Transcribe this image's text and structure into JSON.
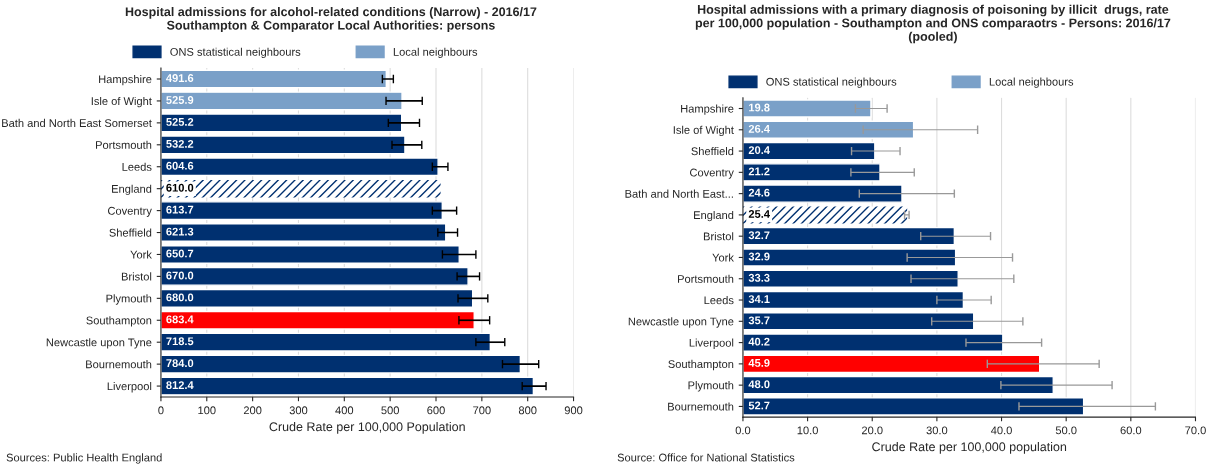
{
  "chart_data": [
    {
      "type": "bar",
      "orientation": "horizontal",
      "title": "Hospital admissions for alcohol-related conditions (Narrow) - 2016/17\nSouthampton & Comparator Local Authorities: persons",
      "xlabel": "Crude Rate per 100,000 Population",
      "categories": [
        "Hampshire",
        "Isle of Wight",
        "Bath and North East Somerset",
        "Portsmouth",
        "Leeds",
        "England",
        "Coventry",
        "Sheffield",
        "York",
        "Bristol",
        "Plymouth",
        "Southampton",
        "Newcastle upon Tyne",
        "Bournemouth",
        "Liverpool"
      ],
      "series": [
        {
          "name": "ONS statistical neighbours",
          "color": "#003070",
          "values": [
            null,
            null,
            525.2,
            532.2,
            604.6,
            null,
            613.7,
            621.3,
            650.7,
            670.0,
            680.0,
            null,
            718.5,
            784.0,
            812.4
          ],
          "value_labels": [
            null,
            null,
            "525.2",
            "532.2",
            "604.6",
            null,
            "613.7",
            "621.3",
            "650.7",
            "670.0",
            "680.0",
            null,
            "718.5",
            "784.0",
            "812.4"
          ],
          "errors": [
            null,
            null,
            [
              496,
              564
            ],
            [
              504,
              569
            ],
            [
              592,
              626
            ],
            null,
            [
              592,
              645
            ],
            [
              604,
              647
            ],
            [
              614,
              687
            ],
            [
              646,
              695
            ],
            [
              648,
              713
            ],
            null,
            [
              687,
              750
            ],
            [
              745,
              824
            ],
            [
              788,
              840
            ]
          ]
        },
        {
          "name": "Local neighbours",
          "color": "#7aa0c8",
          "values": [
            491.6,
            525.9,
            null,
            null,
            null,
            null,
            null,
            null,
            null,
            null,
            null,
            null,
            null,
            null,
            null
          ],
          "value_labels": [
            "491.6",
            "525.9",
            null,
            null,
            null,
            null,
            null,
            null,
            null,
            null,
            null,
            null,
            null,
            null,
            null
          ],
          "errors": [
            [
              483,
              507
            ],
            [
              491,
              570
            ],
            null,
            null,
            null,
            null,
            null,
            null,
            null,
            null,
            null,
            null,
            null,
            null,
            null
          ]
        },
        {
          "color": "#ffffff",
          "values": [
            null,
            null,
            null,
            null,
            null,
            610.0,
            null,
            null,
            null,
            null,
            null,
            null,
            null,
            null,
            null
          ],
          "value_labels": [
            null,
            null,
            null,
            null,
            null,
            "610.0",
            null,
            null,
            null,
            null,
            null,
            null,
            null,
            null,
            null
          ]
        },
        {
          "color": "#ff0000",
          "values": [
            null,
            null,
            null,
            null,
            null,
            null,
            null,
            null,
            null,
            null,
            null,
            683.4,
            null,
            null,
            null
          ],
          "value_labels": [
            null,
            null,
            null,
            null,
            null,
            null,
            null,
            null,
            null,
            null,
            null,
            "683.4",
            null,
            null,
            null
          ],
          "errors": [
            null,
            null,
            null,
            null,
            null,
            null,
            null,
            null,
            null,
            null,
            null,
            [
              650,
              717
            ],
            null,
            null,
            null
          ]
        }
      ],
      "xlim": [
        0,
        900
      ],
      "xticks": [
        0,
        100,
        200,
        300,
        400,
        500,
        600,
        700,
        800,
        900
      ],
      "grid": "x",
      "legend": "top",
      "annotations": [
        "Sources: Public Health England"
      ]
    },
    {
      "type": "bar",
      "orientation": "horizontal",
      "title": "Hospital admissions with a primary diagnosis of poisoning by illicit  drugs, rate\nper 100,000 population - Southampton and ONS comparaotrs - Persons: 2016/17\n(pooled)",
      "xlabel": "Crude Rate per 100,000 population",
      "categories": [
        "Hampshire",
        "Isle of Wight",
        "Sheffield",
        "Coventry",
        "Bath and North East...",
        "England",
        "Bristol",
        "York",
        "Portsmouth",
        "Leeds",
        "Newcastle upon Tyne",
        "Liverpool",
        "Southampton",
        "Plymouth",
        "Bournemouth"
      ],
      "series": [
        {
          "name": "ONS statistical neighbours",
          "color": "#003070",
          "values": [
            null,
            null,
            20.4,
            21.2,
            24.6,
            null,
            32.7,
            32.9,
            33.3,
            34.1,
            35.7,
            40.2,
            null,
            48.0,
            52.7
          ],
          "value_labels": [
            null,
            null,
            "20.4",
            "21.2",
            "24.6",
            null,
            "32.7",
            "32.9",
            "33.3",
            "34.1",
            "35.7",
            "40.2",
            null,
            "48.0",
            "52.7"
          ],
          "errors": [
            null,
            null,
            [
              16.8,
              24.3
            ],
            [
              16.7,
              26.5
            ],
            [
              18.0,
              32.7
            ],
            null,
            [
              27.5,
              38.3
            ],
            [
              25.4,
              41.7
            ],
            [
              26.0,
              41.9
            ],
            [
              30.0,
              38.4
            ],
            [
              29.2,
              43.3
            ],
            [
              34.5,
              46.2
            ],
            null,
            [
              39.9,
              57.1
            ],
            [
              42.7,
              63.8
            ]
          ]
        },
        {
          "name": "Local neighbours",
          "color": "#7aa0c8",
          "values": [
            19.8,
            26.4,
            null,
            null,
            null,
            null,
            null,
            null,
            null,
            null,
            null,
            null,
            null,
            null,
            null
          ],
          "value_labels": [
            "19.8",
            "26.4",
            null,
            null,
            null,
            null,
            null,
            null,
            null,
            null,
            null,
            null,
            null,
            null,
            null
          ],
          "errors": [
            [
              17.4,
              22.3
            ],
            [
              18.6,
              36.3
            ],
            null,
            null,
            null,
            null,
            null,
            null,
            null,
            null,
            null,
            null,
            null,
            null,
            null
          ]
        },
        {
          "color": "#ffffff",
          "values": [
            null,
            null,
            null,
            null,
            null,
            25.4,
            null,
            null,
            null,
            null,
            null,
            null,
            null,
            null,
            null
          ],
          "value_labels": [
            null,
            null,
            null,
            null,
            null,
            "25.4",
            null,
            null,
            null,
            null,
            null,
            null,
            null,
            null,
            null
          ],
          "errors": [
            null,
            null,
            null,
            null,
            null,
            [
              25.0,
              25.7
            ],
            null,
            null,
            null,
            null,
            null,
            null,
            null,
            null,
            null
          ]
        },
        {
          "color": "#ff0000",
          "values": [
            null,
            null,
            null,
            null,
            null,
            null,
            null,
            null,
            null,
            null,
            null,
            null,
            45.9,
            null,
            null
          ],
          "value_labels": [
            null,
            null,
            null,
            null,
            null,
            null,
            null,
            null,
            null,
            null,
            null,
            null,
            "45.9",
            null,
            null
          ],
          "errors": [
            null,
            null,
            null,
            null,
            null,
            null,
            null,
            null,
            null,
            null,
            null,
            null,
            [
              37.8,
              55.1
            ],
            null,
            null
          ]
        }
      ],
      "xlim": [
        0,
        70
      ],
      "xticks": [
        {
          "value": 0,
          "label": "0.0"
        },
        {
          "value": 10,
          "label": "10.0"
        },
        {
          "value": 20,
          "label": "20.0"
        },
        {
          "value": 30,
          "label": "30.0"
        },
        {
          "value": 40,
          "label": "40.0"
        },
        {
          "value": 50,
          "label": "50.0"
        },
        {
          "value": 60,
          "label": "60.0"
        },
        {
          "value": 70,
          "label": "70.0"
        }
      ],
      "grid": "x",
      "legend": "top",
      "annotations": [
        "Source: Office for National Statistics"
      ]
    }
  ]
}
